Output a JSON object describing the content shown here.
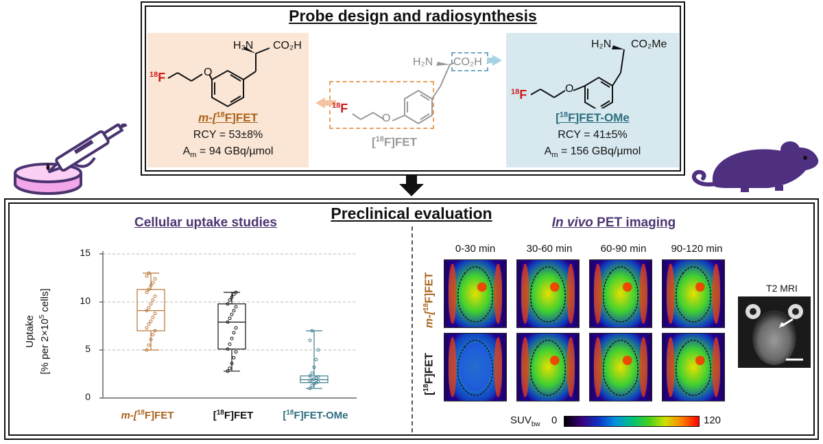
{
  "top": {
    "title": "Probe design and radiosynthesis",
    "left_compound": {
      "amine": "H₂N",
      "acid": "CO₂H",
      "fluoro": "18F",
      "name_prefix": "m-[",
      "name_iso": "18",
      "name_suffix": "F]FET",
      "rcy": "RCY = 53±8%",
      "am_label": "A",
      "am_sub": "m",
      "am_value": " = 94 GBq/µmol"
    },
    "center_compound": {
      "amine": "H₂N",
      "acid": "CO₂H",
      "fluoro": "18F",
      "name_prefix": "[",
      "name_iso": "18",
      "name_suffix": "F]FET"
    },
    "right_compound": {
      "amine": "H₂N",
      "acid": "CO₂Me",
      "fluoro": "18F",
      "name_prefix": "[",
      "name_iso": "18",
      "name_suffix": "F]FET-OMe",
      "rcy": "RCY = 41±5%",
      "am_label": "A",
      "am_sub": "m",
      "am_value": " = 156 GBq/µmol"
    }
  },
  "bottom": {
    "title": "Preclinical evaluation",
    "cellular_title": "Cellular uptake studies",
    "pet_title_italic": "In vivo",
    "pet_title_rest": " PET imaging",
    "time_labels": [
      "0-30 min",
      "30-60 min",
      "60-90 min",
      "90-120 min"
    ],
    "row_labels": [
      {
        "prefix": "m-[",
        "iso": "18",
        "suffix": "F]FET",
        "color": "#a8621a"
      },
      {
        "prefix": "[",
        "iso": "18",
        "suffix": "F]FET",
        "color": "#111111"
      }
    ],
    "mri_label": "T2 MRI",
    "colorbar": {
      "label": "SUV",
      "label_sub": "bw",
      "min": "0",
      "max": "120"
    }
  },
  "chart_data": {
    "type": "box",
    "ylabel_line1": "Uptake",
    "ylabel_line2": "[% per 2×10",
    "ylabel_sup": "5",
    "ylabel_line2_end": " cells]",
    "ylim": [
      0,
      15
    ],
    "yticks": [
      "0",
      "5",
      "10",
      "15"
    ],
    "grid": "horizontal dashed",
    "categories": [
      {
        "prefix": "m-[",
        "iso": "18",
        "suffix": "F]FET"
      },
      {
        "prefix": "[",
        "iso": "18",
        "suffix": "F]FET"
      },
      {
        "prefix": "[",
        "iso": "18",
        "suffix": "F]FET-OMe"
      }
    ],
    "colors": [
      "#b87333",
      "#111111",
      "#3a7d8c"
    ],
    "boxes": [
      {
        "min": 5.0,
        "q1": 7.0,
        "median": 9.1,
        "q3": 11.3,
        "max": 13.0,
        "points": [
          5.0,
          5.5,
          6.1,
          6.6,
          7.0,
          7.3,
          7.7,
          8.0,
          8.4,
          8.8,
          9.1,
          9.4,
          9.8,
          10.2,
          10.6,
          11.0,
          11.3,
          11.7,
          12.0,
          12.4,
          12.7,
          13.0
        ]
      },
      {
        "min": 2.8,
        "q1": 5.1,
        "median": 7.9,
        "q3": 9.8,
        "max": 11.0,
        "points": [
          2.8,
          3.1,
          3.6,
          4.2,
          4.8,
          5.1,
          5.6,
          6.2,
          6.8,
          7.3,
          7.9,
          8.3,
          8.7,
          9.1,
          9.5,
          9.8,
          10.2,
          10.5,
          10.8,
          11.0
        ]
      },
      {
        "min": 1.0,
        "q1": 1.6,
        "median": 1.9,
        "q3": 2.3,
        "max": 7.0,
        "points": [
          1.0,
          1.3,
          1.5,
          1.6,
          1.7,
          1.8,
          1.9,
          2.0,
          2.1,
          2.2,
          2.3,
          2.6,
          3.2,
          4.0,
          5.0,
          6.0,
          7.0
        ]
      }
    ]
  }
}
